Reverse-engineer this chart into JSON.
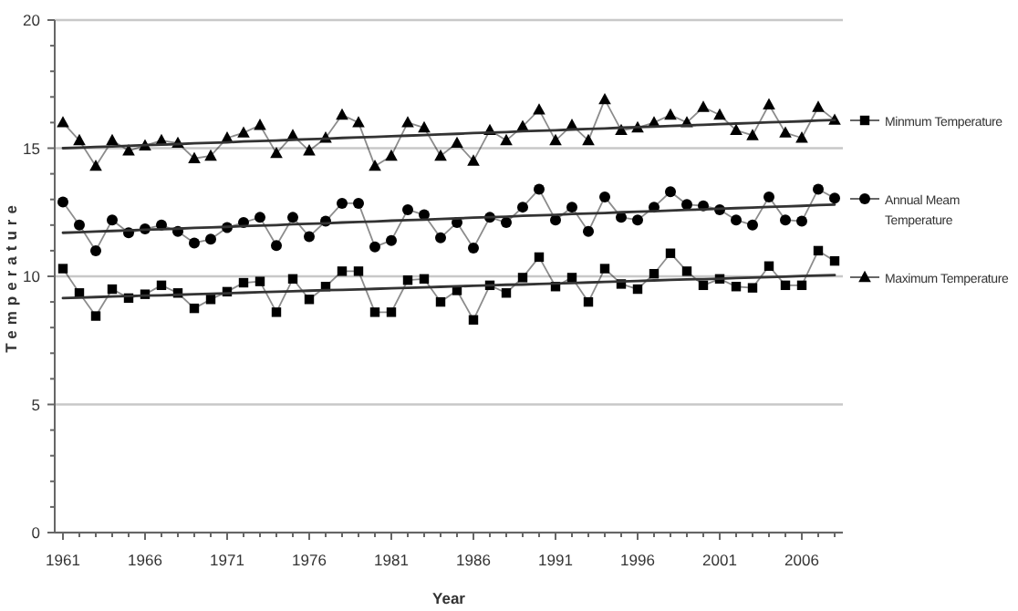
{
  "chart_data": {
    "type": "line",
    "xlabel": "Year",
    "ylabel": "Temperature",
    "xlim": [
      1960.5,
      2008.5
    ],
    "ylim": [
      0,
      20
    ],
    "xticks": [
      1961,
      {
        "value": 1962,
        "label": null
      },
      {
        "value": 1963,
        "label": null
      },
      {
        "value": 1964,
        "label": null
      },
      {
        "value": 1965,
        "label": null
      },
      1966,
      {
        "value": 1967,
        "label": null
      },
      {
        "value": 1968,
        "label": null
      },
      {
        "value": 1969,
        "label": null
      },
      {
        "value": 1970,
        "label": null
      },
      1971,
      {
        "value": 1972,
        "label": null
      },
      {
        "value": 1973,
        "label": null
      },
      {
        "value": 1974,
        "label": null
      },
      {
        "value": 1975,
        "label": null
      },
      1976,
      {
        "value": 1977,
        "label": null
      },
      {
        "value": 1978,
        "label": null
      },
      {
        "value": 1979,
        "label": null
      },
      {
        "value": 1980,
        "label": null
      },
      1981,
      {
        "value": 1982,
        "label": null
      },
      {
        "value": 1983,
        "label": null
      },
      {
        "value": 1984,
        "label": null
      },
      {
        "value": 1985,
        "label": null
      },
      1986,
      {
        "value": 1987,
        "label": null
      },
      {
        "value": 1988,
        "label": null
      },
      {
        "value": 1989,
        "label": null
      },
      {
        "value": 1990,
        "label": null
      },
      1991,
      {
        "value": 1992,
        "label": null
      },
      {
        "value": 1993,
        "label": null
      },
      {
        "value": 1994,
        "label": null
      },
      {
        "value": 1995,
        "label": null
      },
      1996,
      {
        "value": 1997,
        "label": null
      },
      {
        "value": 1998,
        "label": null
      },
      {
        "value": 1999,
        "label": null
      },
      {
        "value": 2000,
        "label": null
      },
      2001,
      {
        "value": 2002,
        "label": null
      },
      {
        "value": 2003,
        "label": null
      },
      {
        "value": 2004,
        "label": null
      },
      {
        "value": 2005,
        "label": null
      },
      2006,
      {
        "value": 2007,
        "label": null
      },
      {
        "value": 2008,
        "label": null
      }
    ],
    "yticks": [
      0,
      {
        "value": 1,
        "label": null
      },
      {
        "value": 2,
        "label": null
      },
      {
        "value": 3,
        "label": null
      },
      {
        "value": 4,
        "label": null
      },
      5,
      {
        "value": 6,
        "label": null
      },
      {
        "value": 7,
        "label": null
      },
      {
        "value": 8,
        "label": null
      },
      {
        "value": 9,
        "label": null
      },
      10,
      {
        "value": 11,
        "label": null
      },
      {
        "value": 12,
        "label": null
      },
      {
        "value": 13,
        "label": null
      },
      {
        "value": 14,
        "label": null
      },
      15,
      {
        "value": 16,
        "label": null
      },
      {
        "value": 17,
        "label": null
      },
      {
        "value": 18,
        "label": null
      },
      {
        "value": 19,
        "label": null
      },
      20
    ],
    "grid": "y",
    "legend": "right",
    "line_style": "solid",
    "x": [
      1961,
      1962,
      1963,
      1964,
      1965,
      1966,
      1967,
      1968,
      1969,
      1970,
      1971,
      1972,
      1973,
      1974,
      1975,
      1976,
      1977,
      1978,
      1979,
      1980,
      1981,
      1982,
      1983,
      1984,
      1985,
      1986,
      1987,
      1988,
      1989,
      1990,
      1991,
      1992,
      1993,
      1994,
      1995,
      1996,
      1997,
      1998,
      1999,
      2000,
      2001,
      2002,
      2003,
      2004,
      2005,
      2006,
      2007,
      2008
    ],
    "series": [
      {
        "name": "Minmum Temperature",
        "color": "#000000",
        "marker": "square",
        "values": [
          10.3,
          9.35,
          8.45,
          9.5,
          9.15,
          9.3,
          9.65,
          9.35,
          8.75,
          9.1,
          9.4,
          9.75,
          9.8,
          8.6,
          9.9,
          9.1,
          9.6,
          10.2,
          10.2,
          8.6,
          8.6,
          9.85,
          9.9,
          9.0,
          9.45,
          8.3,
          9.65,
          9.35,
          9.95,
          10.75,
          9.6,
          9.95,
          9.0,
          10.3,
          9.7,
          9.5,
          10.1,
          10.9,
          10.2,
          9.65,
          9.9,
          9.6,
          9.55,
          10.4,
          9.65,
          9.65,
          11.0,
          10.6
        ]
      },
      {
        "name": "Annual Meam Temperature",
        "color": "#000000",
        "marker": "circle",
        "values": [
          12.9,
          12.0,
          11.0,
          12.2,
          11.7,
          11.85,
          12.0,
          11.75,
          11.3,
          11.45,
          11.9,
          12.1,
          12.3,
          11.2,
          12.3,
          11.55,
          12.15,
          12.85,
          12.85,
          11.15,
          11.4,
          12.6,
          12.4,
          11.5,
          12.1,
          11.1,
          12.3,
          12.1,
          12.7,
          13.4,
          12.2,
          12.7,
          11.75,
          13.1,
          12.3,
          12.2,
          12.7,
          13.3,
          12.8,
          12.75,
          12.6,
          12.2,
          12.0,
          13.1,
          12.2,
          12.15,
          13.4,
          13.05
        ]
      },
      {
        "name": "Maximum Temperature",
        "color": "#000000",
        "marker": "triangle",
        "values": [
          16.0,
          15.3,
          14.3,
          15.3,
          14.9,
          15.1,
          15.3,
          15.2,
          14.6,
          14.7,
          15.4,
          15.6,
          15.9,
          14.8,
          15.5,
          14.9,
          15.4,
          16.3,
          16.0,
          14.3,
          14.7,
          16.0,
          15.8,
          14.7,
          15.2,
          14.5,
          15.7,
          15.3,
          15.85,
          16.5,
          15.3,
          15.9,
          15.3,
          16.9,
          15.7,
          15.8,
          16.0,
          16.3,
          16.0,
          16.6,
          16.3,
          15.7,
          15.5,
          16.7,
          15.6,
          15.4,
          16.6,
          16.1
        ]
      },
      {
        "type": "line",
        "color": "#333333",
        "marker": "none",
        "values": [
          9.15,
          9.17,
          9.19,
          9.21,
          9.23,
          9.25,
          9.26,
          9.28,
          9.3,
          9.32,
          9.34,
          9.36,
          9.38,
          9.4,
          9.42,
          9.44,
          9.46,
          9.47,
          9.49,
          9.51,
          9.53,
          9.55,
          9.57,
          9.59,
          9.61,
          9.63,
          9.65,
          9.67,
          9.68,
          9.7,
          9.72,
          9.74,
          9.76,
          9.78,
          9.8,
          9.82,
          9.84,
          9.86,
          9.88,
          9.89,
          9.91,
          9.93,
          9.95,
          9.97,
          9.99,
          10.01,
          10.03,
          10.05
        ]
      },
      {
        "type": "line",
        "color": "#333333",
        "marker": "none",
        "values": [
          11.7,
          11.72,
          11.75,
          11.77,
          11.79,
          11.82,
          11.84,
          11.86,
          11.89,
          11.91,
          11.93,
          11.96,
          11.98,
          12.0,
          12.03,
          12.05,
          12.07,
          12.1,
          12.12,
          12.14,
          12.17,
          12.19,
          12.21,
          12.24,
          12.26,
          12.29,
          12.31,
          12.33,
          12.36,
          12.38,
          12.4,
          12.43,
          12.45,
          12.47,
          12.5,
          12.52,
          12.54,
          12.57,
          12.59,
          12.61,
          12.64,
          12.66,
          12.68,
          12.71,
          12.73,
          12.75,
          12.78,
          12.8
        ]
      },
      {
        "type": "line",
        "color": "#333333",
        "marker": "none",
        "values": [
          15.0,
          15.02,
          15.05,
          15.07,
          15.09,
          15.12,
          15.14,
          15.16,
          15.19,
          15.21,
          15.23,
          15.26,
          15.28,
          15.3,
          15.33,
          15.35,
          15.37,
          15.4,
          15.42,
          15.44,
          15.47,
          15.49,
          15.51,
          15.54,
          15.56,
          15.59,
          15.61,
          15.63,
          15.66,
          15.68,
          15.7,
          15.73,
          15.75,
          15.77,
          15.8,
          15.82,
          15.84,
          15.87,
          15.89,
          15.91,
          15.94,
          15.96,
          15.98,
          16.01,
          16.03,
          16.05,
          16.08,
          16.1
        ]
      }
    ]
  }
}
